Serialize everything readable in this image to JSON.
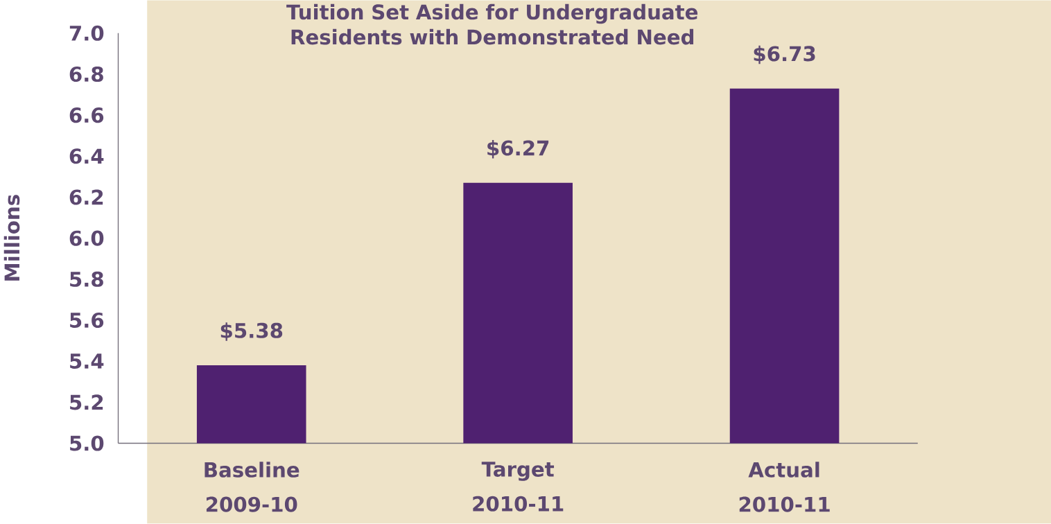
{
  "chart_data": {
    "type": "bar",
    "title": "Tuition Set Aside for Undergraduate Residents with Demonstrated Need",
    "ylabel": "Millions",
    "categories": [
      "Baseline 2009-10",
      "Target 2010-11",
      "Actual 2010-11"
    ],
    "values": [
      5.38,
      6.27,
      6.73
    ],
    "value_labels": [
      "$5.38",
      "$6.27",
      "$6.73"
    ],
    "color": "#4f2170",
    "ylim": [
      5.0,
      7.0
    ],
    "yticks": [
      "5.0",
      "5.2",
      "5.4",
      "5.6",
      "5.8",
      "6.0",
      "6.2",
      "6.4",
      "6.6",
      "6.8",
      "7.0"
    ]
  }
}
